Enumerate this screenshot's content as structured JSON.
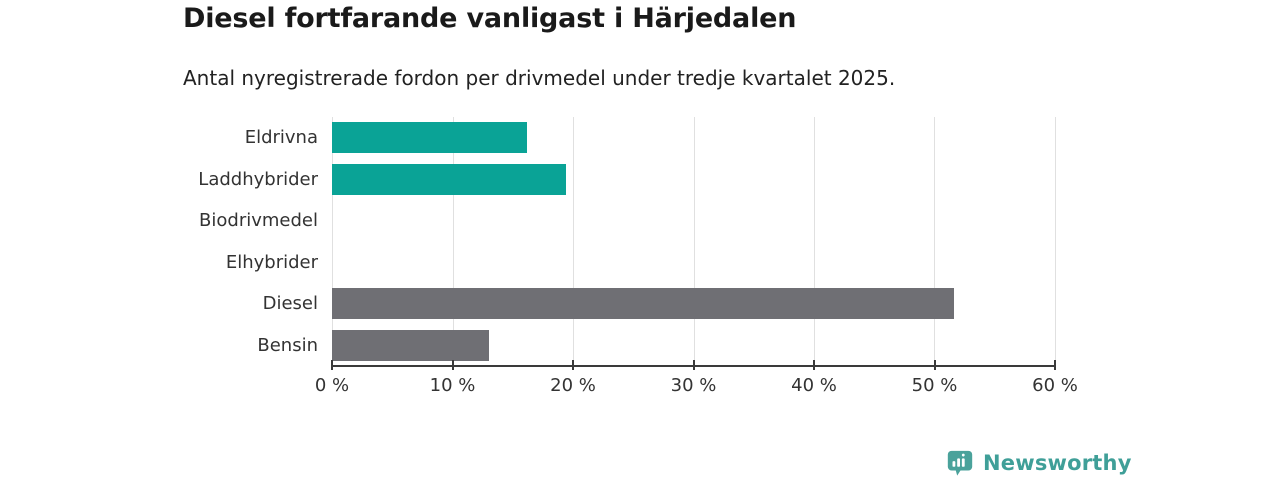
{
  "header": {
    "title": "Diesel fortfarande vanligast i Härjedalen",
    "subtitle": "Antal nyregistrerade fordon per drivmedel under tredje kvartalet 2025."
  },
  "chart_data": {
    "type": "bar",
    "orientation": "horizontal",
    "title": "Diesel fortfarande vanligast i Härjedalen",
    "subtitle": "Antal nyregistrerade fordon per drivmedel under tredje kvartalet 2025.",
    "categories": [
      "Eldrivna",
      "Laddhybrider",
      "Biodrivmedel",
      "Elhybrider",
      "Diesel",
      "Bensin"
    ],
    "values": [
      16.2,
      19.4,
      0,
      0,
      51.6,
      13
    ],
    "unit": "%",
    "xlim": [
      0,
      60
    ],
    "x_tick_labels": [
      "0 %",
      "10 %",
      "20 %",
      "30 %",
      "40 %",
      "50 %",
      "60 %"
    ],
    "x_tick_values": [
      0,
      10,
      20,
      30,
      40,
      50,
      60
    ],
    "bar_colors": [
      "#0aa396",
      "#0aa396",
      "#0aa396",
      "#0aa396",
      "#6f6f74",
      "#6f6f74"
    ],
    "grid": "vertical",
    "legend": "none"
  },
  "branding": {
    "logo_text": "Newsworthy",
    "logo_icon": "newsworthy-badge-bar-chart-icon",
    "accent": "#3f9f98"
  },
  "colors": {
    "teal": "#0aa396",
    "gray": "#6f6f74",
    "gridline": "#e0e0e0",
    "axis": "#3a3a3a",
    "title_text": "#1a1a1a",
    "body_text": "#333333"
  }
}
